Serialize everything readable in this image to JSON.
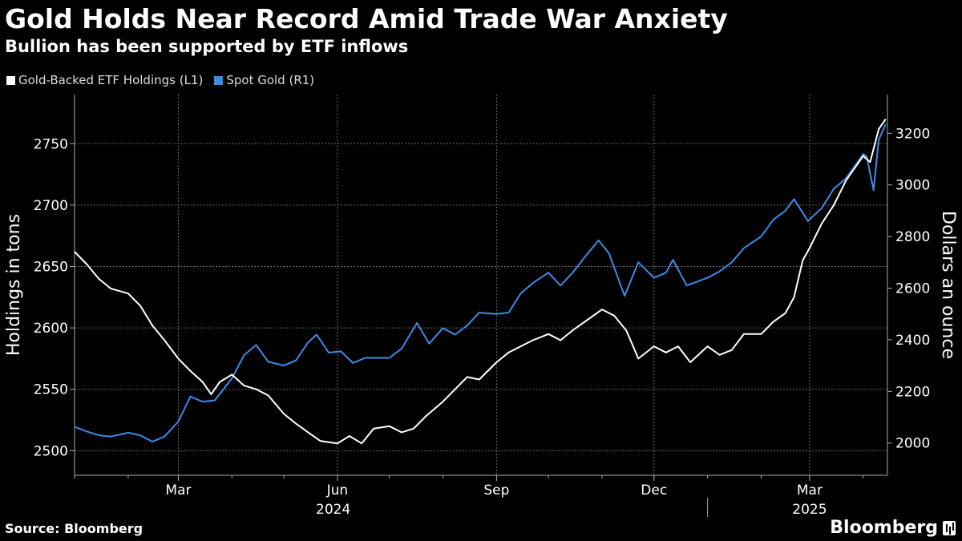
{
  "title": "Gold Holds Near Record Amid Trade War Anxiety",
  "subtitle": "Bullion has been supported by ETF inflows",
  "source": "Source: Bloomberg",
  "brand": "Bloomberg",
  "colors": {
    "etf": "#ffffff",
    "spot": "#3d8ce8",
    "grid": "#666666",
    "axis": "#aaaaaa"
  },
  "chart_data": {
    "type": "line",
    "legend_position": "top-left",
    "grid": true,
    "xlim": [
      "2024-01-01",
      "2025-04-15"
    ],
    "x_ticks": [
      {
        "date": "2024-03-01",
        "label": "Mar"
      },
      {
        "date": "2024-06-01",
        "label": "Jun"
      },
      {
        "date": "2024-09-01",
        "label": "Sep"
      },
      {
        "date": "2024-12-01",
        "label": "Dec"
      },
      {
        "date": "2025-03-01",
        "label": "Mar"
      }
    ],
    "year_labels": [
      {
        "date": "2024-07-01",
        "label": "2024"
      },
      {
        "date": "2025-03-01",
        "label": "2025"
      }
    ],
    "left_axis": {
      "label": "Holdings in tons",
      "ylim": [
        2480,
        2790
      ],
      "ticks": [
        2500,
        2550,
        2600,
        2650,
        2700,
        2750
      ]
    },
    "right_axis": {
      "label": "Dollars an ounce",
      "ylim": [
        1875,
        3350
      ],
      "ticks": [
        2000,
        2200,
        2400,
        2600,
        2800,
        3000,
        3200
      ]
    },
    "series": [
      {
        "name": "Gold-Backed ETF Holdings (L1)",
        "axis": "left",
        "points": [
          [
            "2024-01-01",
            2662
          ],
          [
            "2024-01-08",
            2652
          ],
          [
            "2024-01-15",
            2640
          ],
          [
            "2024-01-22",
            2632
          ],
          [
            "2024-02-01",
            2628
          ],
          [
            "2024-02-08",
            2618
          ],
          [
            "2024-02-15",
            2602
          ],
          [
            "2024-02-22",
            2590
          ],
          [
            "2024-03-01",
            2575
          ],
          [
            "2024-03-08",
            2565
          ],
          [
            "2024-03-15",
            2556
          ],
          [
            "2024-03-20",
            2546
          ],
          [
            "2024-03-25",
            2556
          ],
          [
            "2024-04-01",
            2562
          ],
          [
            "2024-04-08",
            2553
          ],
          [
            "2024-04-15",
            2550
          ],
          [
            "2024-04-22",
            2545
          ],
          [
            "2024-05-01",
            2530
          ],
          [
            "2024-05-08",
            2522
          ],
          [
            "2024-05-15",
            2515
          ],
          [
            "2024-05-22",
            2508
          ],
          [
            "2024-06-01",
            2506
          ],
          [
            "2024-06-08",
            2512
          ],
          [
            "2024-06-15",
            2506
          ],
          [
            "2024-06-22",
            2518
          ],
          [
            "2024-07-01",
            2520
          ],
          [
            "2024-07-08",
            2515
          ],
          [
            "2024-07-15",
            2518
          ],
          [
            "2024-07-22",
            2528
          ],
          [
            "2024-08-01",
            2540
          ],
          [
            "2024-08-08",
            2550
          ],
          [
            "2024-08-15",
            2560
          ],
          [
            "2024-08-22",
            2558
          ],
          [
            "2024-09-01",
            2572
          ],
          [
            "2024-09-08",
            2580
          ],
          [
            "2024-09-15",
            2585
          ],
          [
            "2024-09-22",
            2590
          ],
          [
            "2024-10-01",
            2595
          ],
          [
            "2024-10-08",
            2590
          ],
          [
            "2024-10-15",
            2598
          ],
          [
            "2024-10-22",
            2605
          ],
          [
            "2024-11-01",
            2615
          ],
          [
            "2024-11-08",
            2610
          ],
          [
            "2024-11-15",
            2598
          ],
          [
            "2024-11-22",
            2575
          ],
          [
            "2024-12-01",
            2585
          ],
          [
            "2024-12-08",
            2580
          ],
          [
            "2024-12-15",
            2585
          ],
          [
            "2024-12-22",
            2572
          ],
          [
            "2025-01-01",
            2585
          ],
          [
            "2025-01-08",
            2578
          ],
          [
            "2025-01-15",
            2582
          ],
          [
            "2025-01-22",
            2595
          ],
          [
            "2025-02-01",
            2595
          ],
          [
            "2025-02-08",
            2605
          ],
          [
            "2025-02-15",
            2612
          ],
          [
            "2025-02-20",
            2625
          ],
          [
            "2025-02-25",
            2655
          ],
          [
            "2025-03-01",
            2665
          ],
          [
            "2025-03-08",
            2685
          ],
          [
            "2025-03-15",
            2700
          ],
          [
            "2025-03-22",
            2720
          ],
          [
            "2025-04-01",
            2740
          ],
          [
            "2025-04-05",
            2735
          ],
          [
            "2025-04-10",
            2762
          ],
          [
            "2025-04-14",
            2770
          ]
        ]
      },
      {
        "name": "Spot Gold (R1)",
        "axis": "right",
        "points": [
          [
            "2024-01-01",
            2063
          ],
          [
            "2024-01-08",
            2045
          ],
          [
            "2024-01-15",
            2030
          ],
          [
            "2024-01-22",
            2025
          ],
          [
            "2024-02-01",
            2040
          ],
          [
            "2024-02-08",
            2030
          ],
          [
            "2024-02-15",
            2005
          ],
          [
            "2024-02-22",
            2025
          ],
          [
            "2024-03-01",
            2083
          ],
          [
            "2024-03-08",
            2180
          ],
          [
            "2024-03-15",
            2160
          ],
          [
            "2024-03-22",
            2165
          ],
          [
            "2024-04-01",
            2250
          ],
          [
            "2024-04-08",
            2340
          ],
          [
            "2024-04-15",
            2380
          ],
          [
            "2024-04-22",
            2315
          ],
          [
            "2024-05-01",
            2300
          ],
          [
            "2024-05-08",
            2320
          ],
          [
            "2024-05-15",
            2390
          ],
          [
            "2024-05-20",
            2420
          ],
          [
            "2024-05-27",
            2350
          ],
          [
            "2024-06-03",
            2355
          ],
          [
            "2024-06-10",
            2310
          ],
          [
            "2024-06-17",
            2330
          ],
          [
            "2024-06-24",
            2330
          ],
          [
            "2024-07-01",
            2330
          ],
          [
            "2024-07-08",
            2365
          ],
          [
            "2024-07-17",
            2465
          ],
          [
            "2024-07-24",
            2385
          ],
          [
            "2024-08-01",
            2445
          ],
          [
            "2024-08-08",
            2420
          ],
          [
            "2024-08-15",
            2455
          ],
          [
            "2024-08-22",
            2505
          ],
          [
            "2024-09-01",
            2500
          ],
          [
            "2024-09-08",
            2505
          ],
          [
            "2024-09-15",
            2580
          ],
          [
            "2024-09-22",
            2620
          ],
          [
            "2024-10-01",
            2660
          ],
          [
            "2024-10-08",
            2610
          ],
          [
            "2024-10-15",
            2660
          ],
          [
            "2024-10-22",
            2720
          ],
          [
            "2024-10-30",
            2785
          ],
          [
            "2024-11-05",
            2735
          ],
          [
            "2024-11-14",
            2570
          ],
          [
            "2024-11-22",
            2700
          ],
          [
            "2024-12-01",
            2640
          ],
          [
            "2024-12-08",
            2660
          ],
          [
            "2024-12-12",
            2710
          ],
          [
            "2024-12-20",
            2610
          ],
          [
            "2025-01-01",
            2640
          ],
          [
            "2025-01-08",
            2665
          ],
          [
            "2025-01-15",
            2700
          ],
          [
            "2025-01-22",
            2755
          ],
          [
            "2025-02-01",
            2800
          ],
          [
            "2025-02-08",
            2865
          ],
          [
            "2025-02-15",
            2900
          ],
          [
            "2025-02-20",
            2945
          ],
          [
            "2025-02-28",
            2860
          ],
          [
            "2025-03-08",
            2910
          ],
          [
            "2025-03-15",
            2985
          ],
          [
            "2025-03-22",
            3025
          ],
          [
            "2025-04-01",
            3120
          ],
          [
            "2025-04-03",
            3110
          ],
          [
            "2025-04-07",
            2980
          ],
          [
            "2025-04-10",
            3175
          ],
          [
            "2025-04-14",
            3235
          ]
        ]
      }
    ]
  }
}
